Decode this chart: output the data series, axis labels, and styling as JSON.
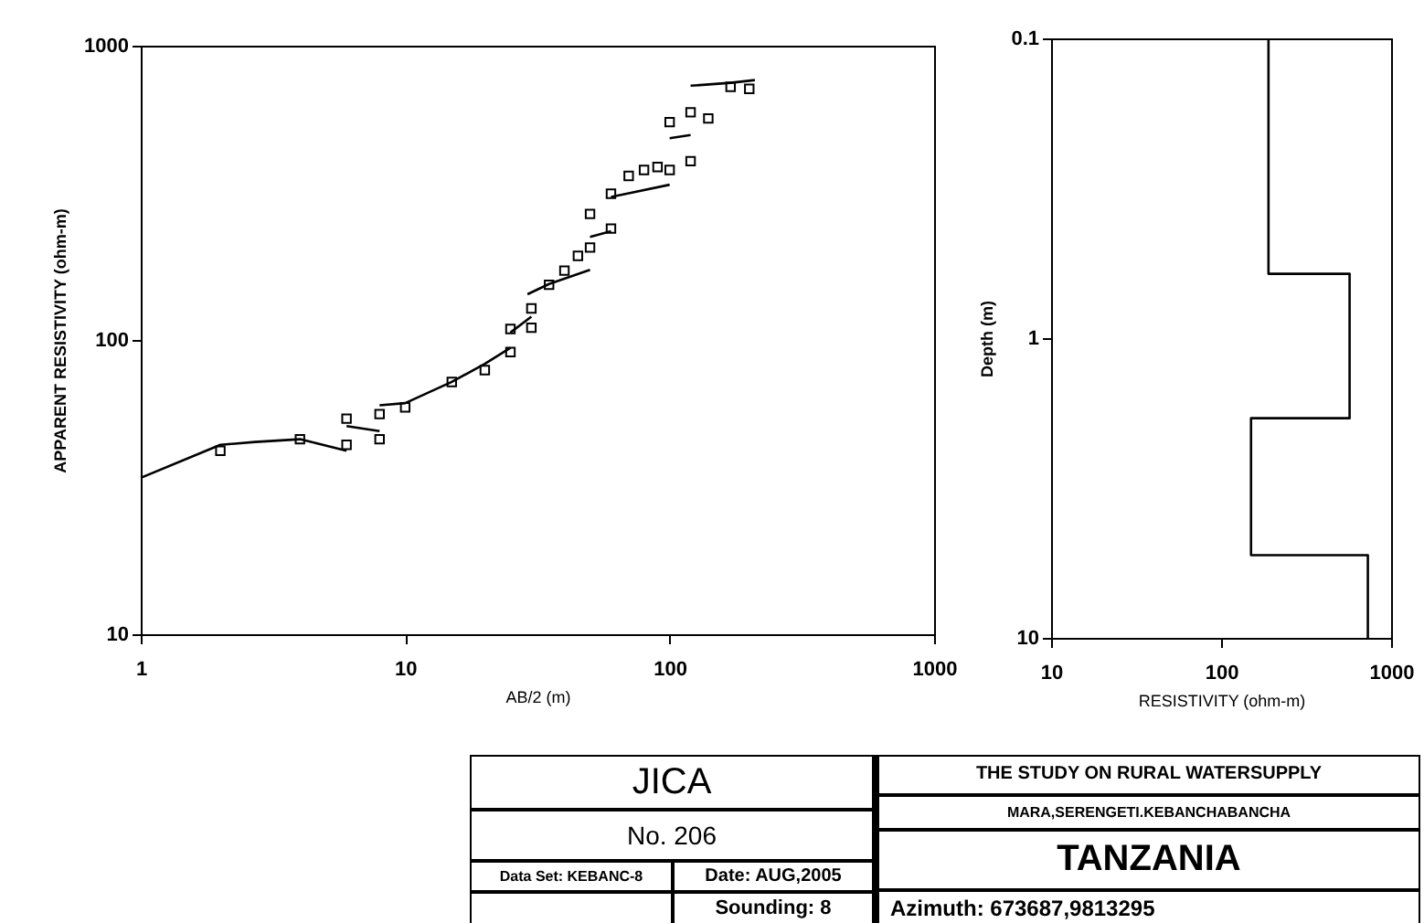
{
  "chart_data": [
    {
      "type": "scatter",
      "xlabel": "AB/2 (m)",
      "ylabel": "APPARENT RESISTIVITY (ohm-m)",
      "log": "xy",
      "xlim": [
        1,
        1000
      ],
      "ylim": [
        10,
        1000
      ],
      "xticks": [
        1,
        10,
        100,
        1000
      ],
      "yticks": [
        10,
        100,
        1000
      ],
      "grid": false,
      "annotations": [
        "JICA",
        "No. 206",
        "Data Set: KEBANC-8",
        "Date: AUG,2005",
        "Sounding: 8",
        "THE STUDY ON RURAL WATERSUPPLY",
        "MARA,SERENGETI.KEBANCHABANCHA",
        "TANZANIA",
        "Azimuth: 673687,9813295"
      ],
      "series": [
        {
          "marker": "square",
          "color": "#000000",
          "x": [
            2,
            4,
            6,
            6,
            8,
            8,
            10,
            15,
            20,
            25,
            25,
            30,
            30,
            35,
            40,
            45,
            50,
            50,
            60,
            60,
            70,
            80,
            90,
            100,
            100,
            120,
            120,
            140,
            170,
            200
          ],
          "values": [
            42,
            46,
            54,
            44,
            56,
            46,
            59,
            72,
            79,
            91,
            109,
            128,
            110,
            154,
            172,
            193,
            206,
            268,
            239,
            314,
            361,
            378,
            387,
            378,
            550,
            405,
            594,
            566,
            725,
            713
          ]
        },
        {
          "type": "line",
          "color": "#000000",
          "x": [
            1,
            2,
            2.7,
            4,
            6
          ],
          "values": [
            34,
            44,
            45,
            46,
            42
          ]
        },
        {
          "type": "line",
          "color": "#000000",
          "x": [
            6,
            8
          ],
          "values": [
            51,
            49
          ]
        },
        {
          "type": "line",
          "color": "#000000",
          "x": [
            8,
            10,
            15,
            20,
            25
          ],
          "values": [
            60,
            61,
            72,
            83,
            94
          ]
        },
        {
          "type": "line",
          "color": "#000000",
          "x": [
            25,
            30
          ],
          "values": [
            106,
            120
          ]
        },
        {
          "type": "line",
          "color": "#000000",
          "x": [
            29,
            35,
            50
          ],
          "values": [
            143,
            155,
            173
          ]
        },
        {
          "type": "line",
          "color": "#000000",
          "x": [
            50,
            60
          ],
          "values": [
            224,
            234
          ]
        },
        {
          "type": "line",
          "color": "#000000",
          "x": [
            60,
            70,
            100
          ],
          "values": [
            306,
            315,
            337
          ]
        },
        {
          "type": "line",
          "color": "#000000",
          "x": [
            100,
            120
          ],
          "values": [
            485,
            497
          ]
        },
        {
          "type": "line",
          "color": "#000000",
          "x": [
            120,
            170,
            210
          ],
          "values": [
            731,
            748,
            764
          ]
        }
      ]
    },
    {
      "type": "line",
      "xlabel": "RESISTIVITY (ohm-m)",
      "ylabel": "Depth (m)",
      "log": "xy",
      "xlim": [
        10,
        1000
      ],
      "ylim": [
        10,
        0.1
      ],
      "xticks": [
        10,
        100,
        1000
      ],
      "yticks": [
        0.1,
        1,
        10
      ],
      "grid": false,
      "series": [
        {
          "color": "#000000",
          "x": [
            190,
            190,
            570,
            570,
            150,
            150,
            730,
            730
          ],
          "values": [
            0.1,
            0.61,
            0.61,
            1.85,
            1.85,
            5.3,
            5.3,
            10
          ]
        }
      ]
    }
  ]
}
